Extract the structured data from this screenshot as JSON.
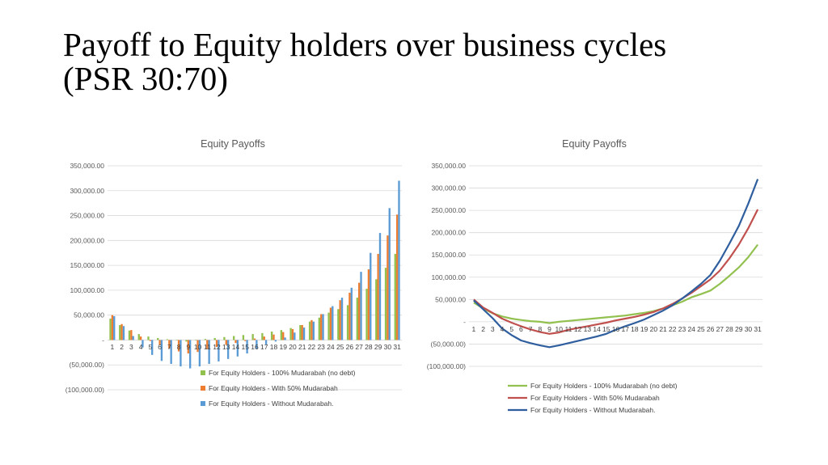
{
  "slide": {
    "title_line1": "Payoff to Equity holders over business cycles",
    "title_line2": "(PSR 30:70)"
  },
  "chart_data": [
    {
      "type": "bar",
      "title": "Equity Payoffs",
      "xlabel": "",
      "ylabel": "",
      "ylim": [
        -100000,
        350000
      ],
      "yticks": [
        350000,
        300000,
        250000,
        200000,
        150000,
        100000,
        50000,
        0,
        -50000,
        -100000
      ],
      "ytick_labels": [
        "350,000.00",
        "300,000.00",
        "250,000.00",
        "200,000.00",
        "150,000.00",
        "100,000.00",
        "50,000.00",
        "-",
        "(50,000.00)",
        "(100,000.00)"
      ],
      "grid": true,
      "legend_position": "bottom",
      "categories": [
        "1",
        "2",
        "3",
        "4",
        "5",
        "6",
        "7",
        "8",
        "9",
        "10",
        "11",
        "12",
        "13",
        "14",
        "15",
        "16",
        "17",
        "18",
        "19",
        "20",
        "21",
        "22",
        "23",
        "24",
        "25",
        "26",
        "27",
        "28",
        "29",
        "30",
        "31"
      ],
      "series": [
        {
          "name": "For Equity Holders - 100% Mudarabah (no debt)",
          "color": "#92c150",
          "values": [
            43000,
            30000,
            19000,
            12000,
            7000,
            4000,
            1500,
            0,
            -3000,
            0,
            2000,
            4000,
            6000,
            8000,
            10000,
            12000,
            14000,
            17000,
            20000,
            24000,
            30000,
            37000,
            45000,
            55000,
            62000,
            70000,
            85000,
            103000,
            122000,
            145000,
            173000
          ]
        },
        {
          "name": "For Equity Holders - With 50% Mudarabah",
          "color": "#ed7d31",
          "values": [
            50000,
            32000,
            20000,
            7000,
            -2000,
            -10000,
            -17000,
            -23000,
            -27000,
            -24000,
            -18000,
            -14000,
            -10000,
            -6000,
            -2000,
            3000,
            7000,
            11000,
            16000,
            22000,
            30000,
            40000,
            52000,
            65000,
            80000,
            95000,
            115000,
            142000,
            173000,
            210000,
            252000
          ]
        },
        {
          "name": "For Equity Holders - Without Mudarabah.",
          "color": "#5b9bd5",
          "values": [
            48000,
            28000,
            8000,
            -15000,
            -30000,
            -42000,
            -48000,
            -53000,
            -57000,
            -53000,
            -48000,
            -43000,
            -38000,
            -33000,
            -27000,
            -18000,
            -10000,
            -3000,
            5000,
            15000,
            25000,
            37000,
            52000,
            68000,
            85000,
            105000,
            137000,
            175000,
            215000,
            265000,
            320000
          ]
        }
      ]
    },
    {
      "type": "line",
      "title": "Equity Payoffs",
      "xlabel": "",
      "ylabel": "",
      "ylim": [
        -100000,
        350000
      ],
      "yticks": [
        350000,
        300000,
        250000,
        200000,
        150000,
        100000,
        50000,
        0,
        -50000,
        -100000
      ],
      "ytick_labels": [
        "350,000.00",
        "300,000.00",
        "250,000.00",
        "200,000.00",
        "150,000.00",
        "100,000.00",
        "50,000.00",
        "-",
        "(50,000.00)",
        "(100,000.00)"
      ],
      "grid": true,
      "legend_position": "bottom",
      "categories": [
        "1",
        "2",
        "3",
        "4",
        "5",
        "6",
        "7",
        "8",
        "9",
        "10",
        "11",
        "12",
        "13",
        "14",
        "15",
        "16",
        "17",
        "18",
        "19",
        "20",
        "21",
        "22",
        "23",
        "24",
        "25",
        "26",
        "27",
        "28",
        "29",
        "30",
        "31"
      ],
      "series": [
        {
          "name": "For Equity Holders - 100% Mudarabah (no debt)",
          "color": "#92c150",
          "values": [
            43000,
            30000,
            19000,
            12000,
            7000,
            4000,
            1500,
            0,
            -3000,
            0,
            2000,
            4000,
            6000,
            8000,
            10000,
            12000,
            14000,
            17000,
            20000,
            24000,
            30000,
            37000,
            45000,
            55000,
            62000,
            70000,
            85000,
            103000,
            122000,
            145000,
            173000
          ]
        },
        {
          "name": "For Equity Holders - With 50% Mudarabah",
          "color": "#c0504d",
          "values": [
            50000,
            32000,
            20000,
            7000,
            -2000,
            -10000,
            -17000,
            -23000,
            -27000,
            -24000,
            -18000,
            -14000,
            -10000,
            -6000,
            -2000,
            3000,
            7000,
            11000,
            16000,
            22000,
            30000,
            40000,
            52000,
            65000,
            80000,
            95000,
            115000,
            142000,
            173000,
            210000,
            252000
          ]
        },
        {
          "name": "For Equity Holders - Without Mudarabah.",
          "color": "#2e5e9e",
          "values": [
            48000,
            28000,
            8000,
            -15000,
            -30000,
            -42000,
            -48000,
            -53000,
            -57000,
            -53000,
            -48000,
            -43000,
            -38000,
            -33000,
            -27000,
            -18000,
            -10000,
            -3000,
            5000,
            15000,
            25000,
            37000,
            52000,
            68000,
            85000,
            105000,
            137000,
            175000,
            215000,
            265000,
            320000
          ]
        }
      ]
    }
  ]
}
